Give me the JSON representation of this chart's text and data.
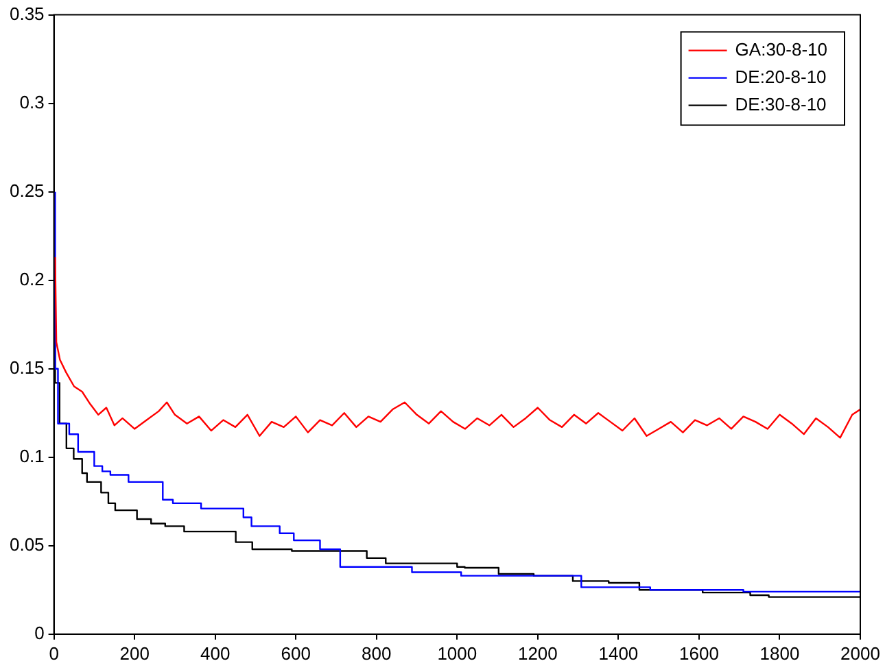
{
  "chart_data": {
    "type": "line",
    "xlim": [
      0,
      2000
    ],
    "xticks": [
      0,
      200,
      400,
      600,
      800,
      1000,
      1200,
      1400,
      1600,
      1800,
      2000
    ],
    "ylim": [
      0,
      0.35
    ],
    "yticks": [
      0,
      0.05,
      0.1,
      0.15,
      0.2,
      0.25,
      0.3,
      0.35
    ],
    "grid": false,
    "legend": "top right",
    "marker": "none",
    "line_style": "solid",
    "series": [
      {
        "name": "GA:30-8-10",
        "color": "#ff0000",
        "type": "line",
        "x": [
          3,
          6,
          15,
          30,
          50,
          70,
          90,
          110,
          130,
          150,
          170,
          200,
          230,
          260,
          280,
          300,
          330,
          360,
          390,
          420,
          450,
          480,
          510,
          540,
          570,
          600,
          630,
          660,
          690,
          720,
          750,
          780,
          810,
          840,
          870,
          900,
          930,
          960,
          990,
          1020,
          1050,
          1080,
          1110,
          1140,
          1170,
          1200,
          1230,
          1260,
          1290,
          1320,
          1350,
          1380,
          1410,
          1440,
          1470,
          1500,
          1530,
          1560,
          1590,
          1620,
          1650,
          1680,
          1710,
          1740,
          1770,
          1800,
          1830,
          1860,
          1890,
          1920,
          1950,
          1980,
          2000
        ],
        "values": [
          0.213,
          0.165,
          0.155,
          0.148,
          0.14,
          0.137,
          0.13,
          0.124,
          0.128,
          0.118,
          0.122,
          0.116,
          0.121,
          0.126,
          0.131,
          0.124,
          0.119,
          0.123,
          0.115,
          0.121,
          0.117,
          0.124,
          0.112,
          0.12,
          0.117,
          0.123,
          0.114,
          0.121,
          0.118,
          0.125,
          0.117,
          0.123,
          0.12,
          0.127,
          0.131,
          0.124,
          0.119,
          0.126,
          0.12,
          0.116,
          0.122,
          0.118,
          0.124,
          0.117,
          0.122,
          0.128,
          0.121,
          0.117,
          0.124,
          0.119,
          0.125,
          0.12,
          0.115,
          0.122,
          0.112,
          0.116,
          0.12,
          0.114,
          0.121,
          0.118,
          0.122,
          0.116,
          0.123,
          0.12,
          0.116,
          0.124,
          0.119,
          0.113,
          0.122,
          0.117,
          0.111,
          0.124,
          0.127
        ]
      },
      {
        "name": "DE:20-8-10",
        "color": "#0000ff",
        "type": "step",
        "x": [
          3,
          10,
          38,
          60,
          100,
          120,
          140,
          185,
          270,
          295,
          365,
          470,
          490,
          560,
          595,
          660,
          710,
          888,
          1010,
          1308,
          1479,
          1710,
          1944,
          2000
        ],
        "values": [
          0.25,
          0.15,
          0.119,
          0.113,
          0.103,
          0.095,
          0.092,
          0.09,
          0.086,
          0.076,
          0.074,
          0.071,
          0.066,
          0.061,
          0.057,
          0.053,
          0.048,
          0.038,
          0.035,
          0.033,
          0.0265,
          0.025,
          0.024,
          0.024
        ]
      },
      {
        "name": "DE:30-8-10",
        "color": "#000000",
        "type": "step",
        "x": [
          3,
          14,
          31,
          49,
          70,
          82,
          117,
          135,
          152,
          206,
          241,
          276,
          323,
          451,
          492,
          590,
          776,
          823,
          1000,
          1019,
          1103,
          1190,
          1287,
          1376,
          1452,
          1609,
          1727,
          1773,
          2000
        ],
        "values": [
          0.18,
          0.142,
          0.119,
          0.105,
          0.099,
          0.091,
          0.086,
          0.08,
          0.074,
          0.07,
          0.065,
          0.0625,
          0.061,
          0.058,
          0.052,
          0.048,
          0.047,
          0.043,
          0.04,
          0.038,
          0.0375,
          0.034,
          0.033,
          0.03,
          0.029,
          0.025,
          0.0235,
          0.022,
          0.021
        ]
      }
    ]
  }
}
